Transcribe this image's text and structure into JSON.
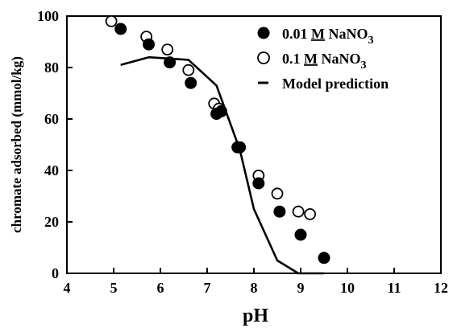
{
  "chart_data": {
    "type": "scatter",
    "xlabel": "pH",
    "ylabel": "chromate adsorbed (mmol/kg)",
    "xlim": [
      4,
      12
    ],
    "ylim": [
      0,
      100
    ],
    "xticks": [
      "4",
      "5",
      "6",
      "7",
      "8",
      "9",
      "10",
      "11",
      "12"
    ],
    "yticks": [
      "0",
      "20",
      "40",
      "60",
      "80",
      "100"
    ],
    "grid": false,
    "legend_position": "top-right",
    "series": [
      {
        "name_main": "0.01 ",
        "name_unit": "M",
        "name_salt": " NaNO",
        "name_sub": "3",
        "marker": "filled-circle",
        "color": "#000000",
        "x": [
          5.15,
          5.75,
          6.2,
          6.65,
          7.2,
          7.3,
          7.65,
          7.7,
          8.1,
          8.55,
          9.0,
          9.5
        ],
        "y": [
          95,
          89,
          82,
          74,
          62,
          63,
          49,
          49,
          35,
          24,
          15,
          6
        ]
      },
      {
        "name_main": "0.1 ",
        "name_unit": "M",
        "name_salt": " NaNO",
        "name_sub": "3",
        "marker": "open-circle",
        "color": "#000000",
        "x": [
          4.95,
          5.7,
          6.15,
          6.6,
          7.15,
          7.25,
          7.65,
          8.1,
          8.5,
          8.95,
          9.2
        ],
        "y": [
          98,
          92,
          87,
          79,
          66,
          64,
          49,
          38,
          31,
          24,
          23
        ]
      },
      {
        "name": "Model prediction",
        "marker": "line",
        "color": "#000000",
        "x": [
          5.15,
          5.75,
          6.6,
          7.2,
          7.7,
          8.0,
          8.5,
          8.95,
          9.5
        ],
        "y": [
          81,
          84,
          83,
          73,
          48,
          25,
          5,
          0,
          0
        ]
      }
    ]
  }
}
